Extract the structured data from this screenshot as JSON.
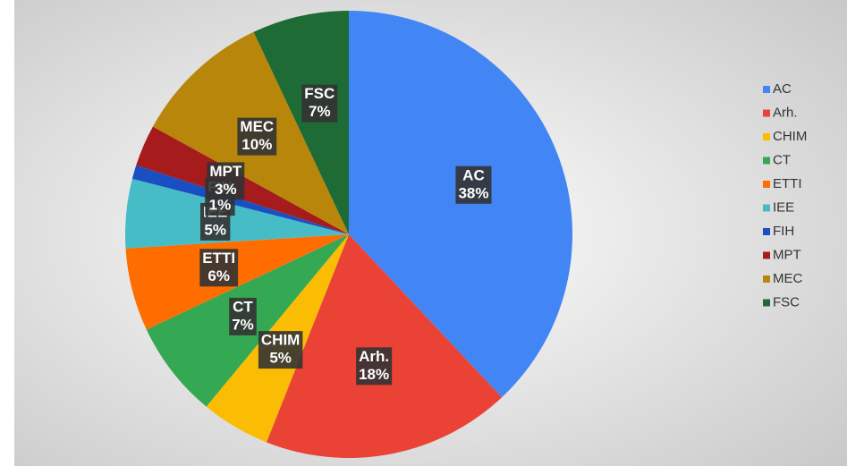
{
  "chart_data": {
    "type": "pie",
    "categories": [
      "AC",
      "Arh.",
      "CHIM",
      "CT",
      "ETTI",
      "IEE",
      "FIH",
      "MPT",
      "MEC",
      "FSC"
    ],
    "values": [
      38,
      18,
      5,
      7,
      6,
      5,
      1,
      3,
      10,
      7
    ],
    "value_labels": [
      "38%",
      "18%",
      "5%",
      "7%",
      "6%",
      "5%",
      "1%",
      "3%",
      "10%",
      "7%"
    ],
    "colors": [
      "#4285f4",
      "#ea4335",
      "#fbbc04",
      "#34a853",
      "#ff6d01",
      "#46bdc6",
      "#1a4fc4",
      "#a61c1c",
      "#b8860b",
      "#1e6b35"
    ],
    "legend": "right"
  }
}
